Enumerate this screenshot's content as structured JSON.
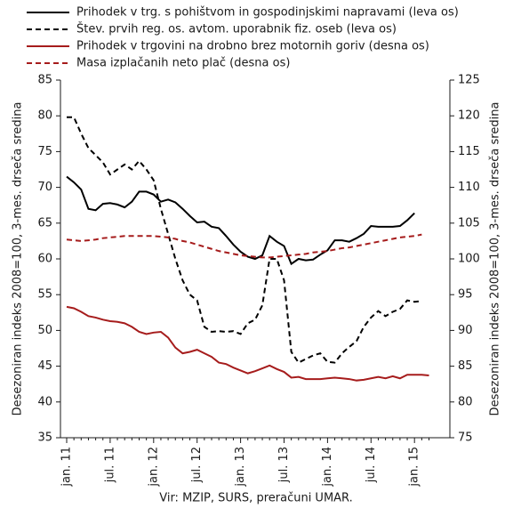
{
  "chart_data": {
    "type": "line",
    "source": "Vir: MZIP, SURS, preračuni UMAR.",
    "ylabel": "Desezoniran indeks 2008=100, 3-mes. drseča sredina",
    "y2label": "Desezoniran indeks 2008=100, 3-mes. drseča sredina",
    "categories": [
      "jan. 11",
      null,
      null,
      null,
      null,
      null,
      "jul. 11",
      null,
      null,
      null,
      null,
      null,
      "jan. 12",
      null,
      null,
      null,
      null,
      null,
      "jul. 12",
      null,
      null,
      null,
      null,
      null,
      "jan. 13",
      null,
      null,
      null,
      null,
      null,
      "jul. 13",
      null,
      null,
      null,
      null,
      null,
      "jan. 14",
      null,
      null,
      null,
      null,
      null,
      "jul. 14",
      null,
      null,
      null,
      null,
      null,
      "jan. 15",
      null,
      null
    ],
    "ylim": [
      35,
      85
    ],
    "yticks": [
      35,
      40,
      45,
      50,
      55,
      60,
      65,
      70,
      75,
      80,
      85
    ],
    "y2lim": [
      75,
      125
    ],
    "y2ticks": [
      75,
      80,
      85,
      90,
      95,
      100,
      105,
      110,
      115,
      120,
      125
    ],
    "series": [
      {
        "name": "Prihodek v trg. s pohištvom in gospodinjskimi napravami (leva os)",
        "color": "#000000",
        "dashed": false,
        "values": [
          71.5,
          70.7,
          69.7,
          67,
          66.8,
          67.7,
          67.8,
          67.6,
          67.2,
          68,
          69.4,
          69.4,
          69,
          68,
          68.3,
          67.9,
          67,
          66,
          65.1,
          65.2,
          64.5,
          64.3,
          63.2,
          62,
          61,
          60.3,
          60,
          60.5,
          63.2,
          62.4,
          61.8,
          59.3,
          60,
          59.8,
          59.9,
          60.6,
          61.2,
          62.6,
          62.6,
          62.4,
          62.9,
          63.5,
          64.6,
          64.5,
          64.5,
          64.5,
          64.6,
          65.4,
          66.4,
          null,
          null
        ]
      },
      {
        "name": "Štev. prvih reg. os. avtom. uporabnik fiz. oseb (leva os)",
        "color": "#000000",
        "dashed": true,
        "values": [
          79.8,
          79.8,
          77.5,
          75.5,
          74.5,
          73.5,
          71.8,
          72.5,
          73.2,
          72.5,
          73.7,
          72.5,
          71,
          67,
          63.5,
          60,
          57,
          55,
          54.2,
          50.5,
          49.8,
          49.9,
          49.8,
          49.9,
          49.5,
          51,
          51.5,
          53.5,
          60,
          60,
          57,
          47,
          45.5,
          46,
          46.5,
          46.8,
          45.6,
          45.5,
          46.8,
          47.7,
          48.5,
          50.5,
          51.8,
          52.7,
          52,
          52.6,
          53,
          54.2,
          54,
          54.1,
          null
        ]
      },
      {
        "name": "Prihodek v trgovini na drobno brez motornih goriv (desna os)",
        "color": "#a61c1c",
        "dashed": false,
        "axis": "y2",
        "values": [
          93.3,
          93.1,
          92.6,
          92,
          91.8,
          91.5,
          91.3,
          91.2,
          91,
          90.5,
          89.8,
          89.5,
          89.7,
          89.8,
          89,
          87.6,
          86.8,
          87,
          87.3,
          86.8,
          86.3,
          85.5,
          85.3,
          84.8,
          84.4,
          84,
          84.3,
          84.7,
          85.1,
          84.6,
          84.2,
          83.4,
          83.5,
          83.2,
          83.2,
          83.2,
          83.3,
          83.4,
          83.3,
          83.2,
          83,
          83.1,
          83.3,
          83.5,
          83.3,
          83.6,
          83.3,
          83.8,
          83.8,
          83.8,
          83.7
        ]
      },
      {
        "name": "Masa izplačanih neto plač (desna os)",
        "color": "#a61c1c",
        "dashed": true,
        "axis": "y2",
        "values": [
          102.7,
          102.6,
          102.5,
          102.6,
          102.7,
          102.9,
          103,
          103.1,
          103.2,
          103.2,
          103.2,
          103.2,
          103.2,
          103.1,
          103,
          102.8,
          102.5,
          102.3,
          102,
          101.7,
          101.4,
          101.1,
          100.9,
          100.7,
          100.5,
          100.4,
          100.3,
          100.2,
          100.2,
          100.3,
          100.4,
          100.5,
          100.6,
          100.7,
          100.9,
          101,
          101.1,
          101.3,
          101.5,
          101.6,
          101.8,
          102,
          102.2,
          102.4,
          102.6,
          102.8,
          103,
          103.1,
          103.2,
          103.4,
          null
        ]
      }
    ]
  }
}
